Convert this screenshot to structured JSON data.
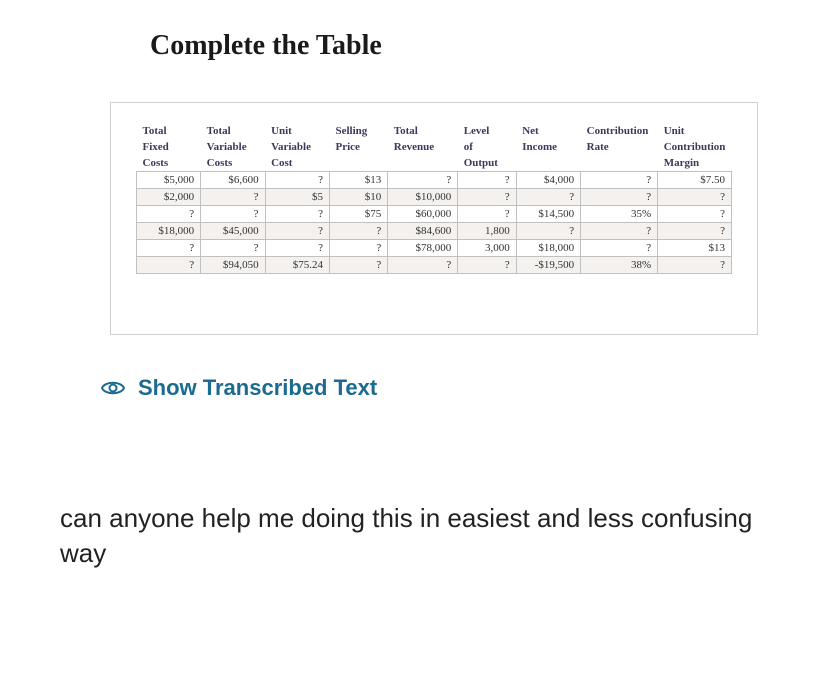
{
  "title": "Complete the Table",
  "table": {
    "headers": [
      [
        "Total",
        "Total",
        "Unit",
        "Selling",
        "Total",
        "Level",
        "Net",
        "Contribution",
        "Unit"
      ],
      [
        "Fixed",
        "Variable",
        "Variable",
        "Price",
        "Revenue",
        "of",
        "Income",
        "Rate",
        "Contribution"
      ],
      [
        "Costs",
        "Costs",
        "Cost",
        "",
        "",
        "Output",
        "",
        "",
        "Margin"
      ]
    ],
    "rows": [
      [
        "$5,000",
        "$6,600",
        "?",
        "$13",
        "?",
        "?",
        "$4,000",
        "?",
        "$7.50"
      ],
      [
        "$2,000",
        "?",
        "$5",
        "$10",
        "$10,000",
        "?",
        "?",
        "?",
        "?"
      ],
      [
        "?",
        "?",
        "?",
        "$75",
        "$60,000",
        "?",
        "$14,500",
        "35%",
        "?"
      ],
      [
        "$18,000",
        "$45,000",
        "?",
        "?",
        "$84,600",
        "1,800",
        "?",
        "?",
        "?"
      ],
      [
        "?",
        "?",
        "?",
        "?",
        "$78,000",
        "3,000",
        "$18,000",
        "?",
        "$13"
      ],
      [
        "?",
        "$94,050",
        "$75.24",
        "?",
        "?",
        "?",
        "-$19,500",
        "38%",
        "?"
      ]
    ],
    "header_color": "#3a3a5a",
    "row_alt_bg": "#f4f1ee",
    "border_color": "#c0c0c0",
    "col_widths_pct": [
      11,
      11,
      11,
      10,
      12,
      10,
      11,
      13,
      11
    ]
  },
  "show_transcribed": {
    "label": "Show Transcribed Text",
    "color": "#1a6b8f"
  },
  "question_text": "can anyone help me doing this in easiest and less confusing way"
}
